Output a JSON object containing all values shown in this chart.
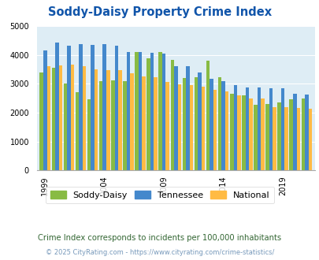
{
  "title": "Soddy-Daisy Property Crime Index",
  "years": [
    1999,
    2000,
    2001,
    2002,
    2003,
    2004,
    2005,
    2006,
    2007,
    2008,
    2009,
    2010,
    2011,
    2012,
    2013,
    2014,
    2015,
    2016,
    2017,
    2018,
    2019,
    2020,
    2021
  ],
  "soddy_daisy": [
    3400,
    3550,
    3020,
    2720,
    2450,
    3100,
    3120,
    3100,
    4100,
    3870,
    4100,
    3820,
    3200,
    3230,
    3790,
    3220,
    2660,
    2600,
    2280,
    2310,
    2340,
    2470,
    2490
  ],
  "tennessee": [
    4150,
    4430,
    4310,
    4380,
    4350,
    4360,
    4320,
    4100,
    4090,
    4060,
    4050,
    3600,
    3600,
    3380,
    3160,
    3080,
    2940,
    2870,
    2880,
    2850,
    2850,
    2640,
    2630
  ],
  "national": [
    3600,
    3640,
    3660,
    3600,
    3510,
    3480,
    3470,
    3360,
    3250,
    3230,
    3050,
    2980,
    2940,
    2900,
    2800,
    2730,
    2600,
    2500,
    2480,
    2200,
    2190,
    2150,
    2120
  ],
  "soddy_color": "#88bb44",
  "tennessee_color": "#4488cc",
  "national_color": "#ffbb44",
  "bg_color": "#deedf5",
  "ylim": [
    0,
    5000
  ],
  "yticks": [
    0,
    1000,
    2000,
    3000,
    4000,
    5000
  ],
  "xtick_years": [
    1999,
    2004,
    2009,
    2014,
    2019
  ],
  "subtitle": "Crime Index corresponds to incidents per 100,000 inhabitants",
  "footer": "© 2025 CityRating.com - https://www.cityrating.com/crime-statistics/",
  "legend_labels": [
    "Soddy-Daisy",
    "Tennessee",
    "National"
  ],
  "title_color": "#1155aa",
  "subtitle_color": "#336633",
  "footer_color": "#7799bb"
}
